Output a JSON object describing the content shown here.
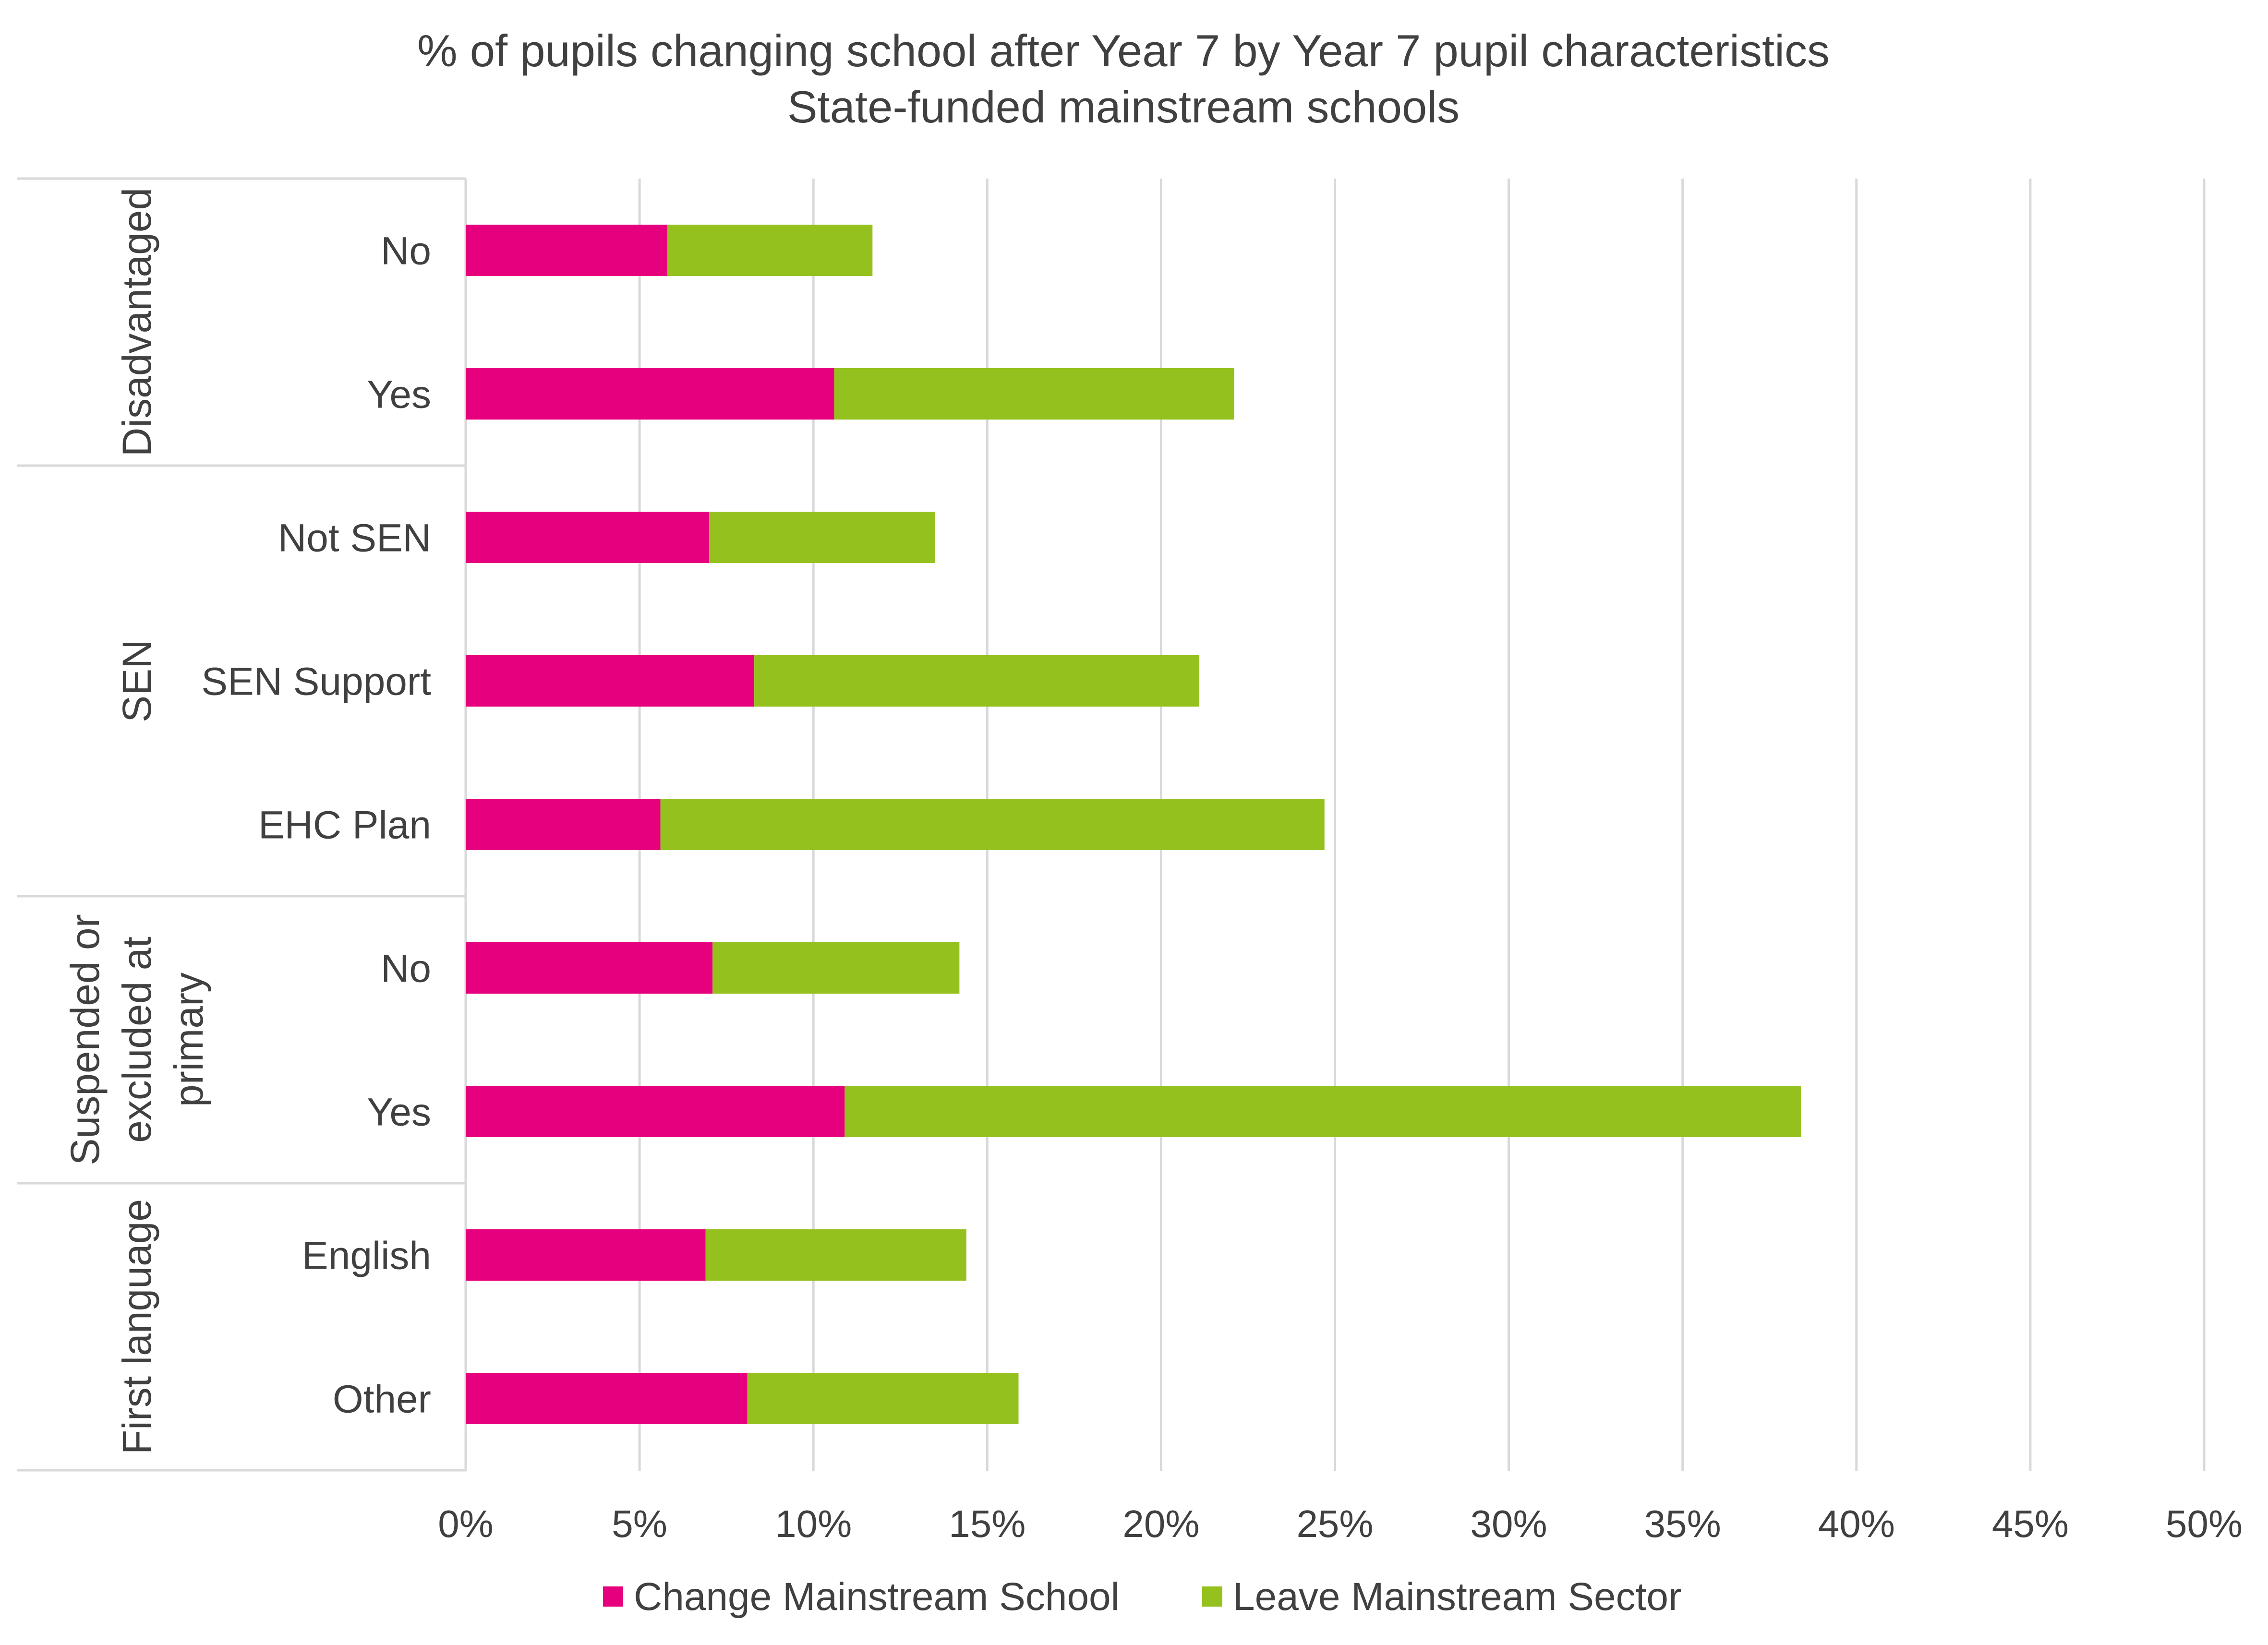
{
  "chart_data": {
    "type": "bar",
    "orientation": "horizontal",
    "stacked": true,
    "title": "% of pupils changing school after Year 7 by Year 7 pupil characteristics",
    "subtitle": "State-funded mainstream schools",
    "xlim": [
      0,
      50
    ],
    "x_ticks": [
      "0%",
      "5%",
      "10%",
      "15%",
      "20%",
      "25%",
      "30%",
      "35%",
      "40%",
      "45%",
      "50%"
    ],
    "grid": true,
    "legend_position": "bottom",
    "groups": [
      {
        "name": "Disadvantaged",
        "label_lines": [
          "Disadvantaged"
        ],
        "categories": [
          "No",
          "Yes"
        ]
      },
      {
        "name": "SEN",
        "label_lines": [
          "SEN"
        ],
        "categories": [
          "Not SEN",
          "SEN Support",
          "EHC Plan"
        ]
      },
      {
        "name": "Suspended or excluded at primary",
        "label_lines": [
          "Suspended or",
          "excluded at",
          "primary"
        ],
        "categories": [
          "No",
          "Yes"
        ]
      },
      {
        "name": "First language",
        "label_lines": [
          "First language"
        ],
        "categories": [
          "English",
          "Other"
        ]
      }
    ],
    "series": [
      {
        "name": "Change Mainstream School",
        "color": "#E6007E",
        "values": [
          5.8,
          10.6,
          7.0,
          8.3,
          5.6,
          7.1,
          10.9,
          6.9,
          8.1
        ]
      },
      {
        "name": "Leave Mainstream Sector",
        "color": "#95C11F",
        "values": [
          5.9,
          11.5,
          6.5,
          12.8,
          19.1,
          7.1,
          27.5,
          7.5,
          7.8
        ]
      }
    ]
  }
}
